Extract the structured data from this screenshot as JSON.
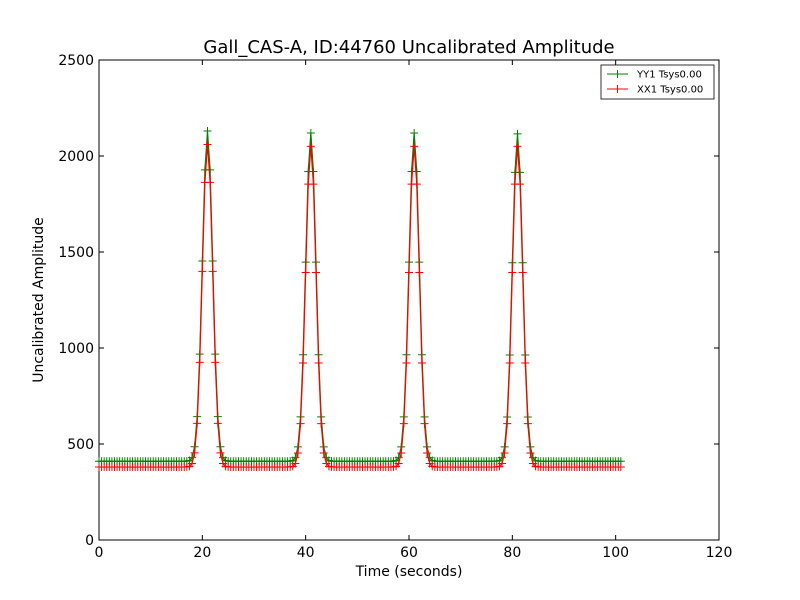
{
  "chart_data": {
    "type": "line",
    "title": "Gall_CAS-A, ID:44760 Uncalibrated Amplitude",
    "xlabel": "Time (seconds)",
    "ylabel": "Uncalibrated Amplitude",
    "xlim": [
      0,
      120
    ],
    "ylim": [
      0,
      2500
    ],
    "xticks": [
      0,
      20,
      40,
      60,
      80,
      100,
      120
    ],
    "yticks": [
      0,
      500,
      1000,
      1500,
      2000,
      2500
    ],
    "grid": false,
    "legend_position": "top-right",
    "sample_interval_s": 0.5,
    "t_end": 101,
    "series": [
      {
        "name": "YY1 Tsys0.00",
        "color": "#008000",
        "marker": "+",
        "baseline": 410,
        "peaks": [
          {
            "t": 21.0,
            "amp": 2130
          },
          {
            "t": 41.0,
            "amp": 2120
          },
          {
            "t": 61.0,
            "amp": 2120
          },
          {
            "t": 81.0,
            "amp": 2115
          }
        ],
        "peak_width_s": 1.0
      },
      {
        "name": "XX1 Tsys0.00",
        "color": "#ff0000",
        "marker": "+",
        "baseline": 380,
        "peaks": [
          {
            "t": 21.0,
            "amp": 2060
          },
          {
            "t": 41.0,
            "amp": 2050
          },
          {
            "t": 61.0,
            "amp": 2050
          },
          {
            "t": 81.0,
            "amp": 2050
          }
        ],
        "peak_width_s": 1.0
      }
    ]
  }
}
